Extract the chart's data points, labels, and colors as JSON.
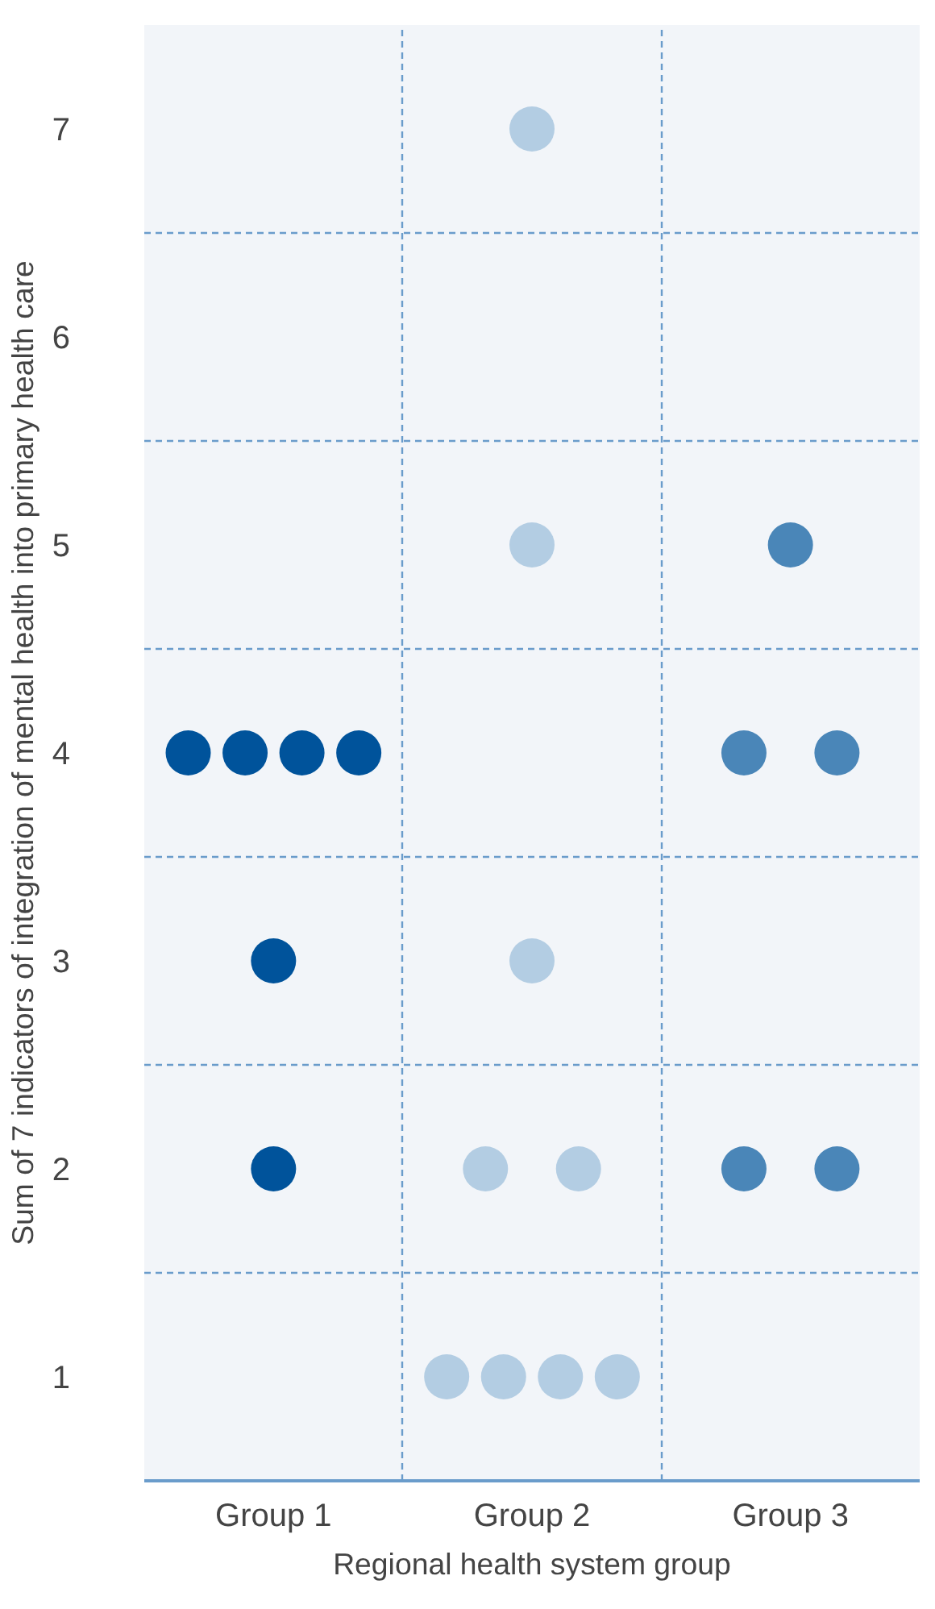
{
  "chart_data": {
    "type": "scatter",
    "xlabel": "Regional health system group",
    "ylabel": "Sum of 7 indicators of integration of mental health into primary health care",
    "categories": [
      "Group 1",
      "Group 2",
      "Group 3"
    ],
    "ylim": [
      0.5,
      7.5
    ],
    "yticks": [
      1,
      2,
      3,
      4,
      5,
      6,
      7
    ],
    "grid": true,
    "marker": "circle",
    "series": [
      {
        "color": "#00539b",
        "x": [
          "Group 1",
          "Group 1",
          "Group 1",
          "Group 1",
          "Group 1",
          "Group 1"
        ],
        "values": [
          4,
          4,
          4,
          4,
          3,
          2
        ]
      },
      {
        "color": "#b3cde3",
        "x": [
          "Group 2",
          "Group 2",
          "Group 2",
          "Group 2",
          "Group 2",
          "Group 2",
          "Group 2",
          "Group 2",
          "Group 2"
        ],
        "values": [
          7,
          5,
          3,
          2,
          2,
          1,
          1,
          1,
          1
        ]
      },
      {
        "color": "#4a86b8",
        "x": [
          "Group 3",
          "Group 3",
          "Group 3",
          "Group 3",
          "Group 3"
        ],
        "values": [
          5,
          4,
          4,
          2,
          2
        ]
      }
    ]
  }
}
